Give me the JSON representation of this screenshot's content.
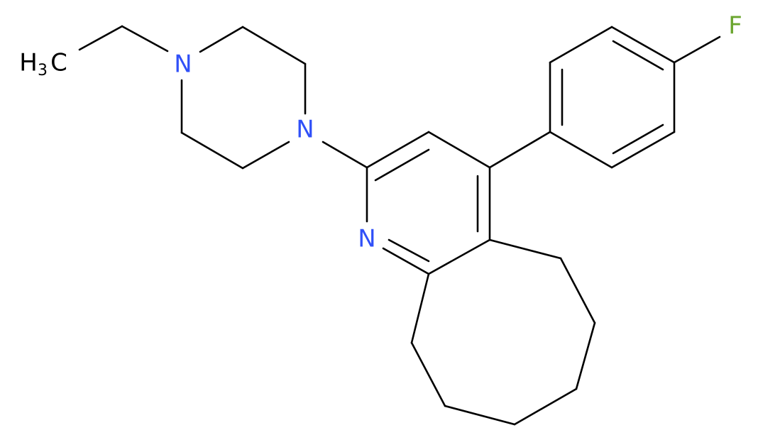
{
  "molecule": {
    "atoms": {
      "methyl": [
        "H",
        "3",
        "C"
      ],
      "n_ethyl": "N",
      "n_piperazine": "N",
      "n_pyridine": "N",
      "fluorine": "F"
    }
  }
}
